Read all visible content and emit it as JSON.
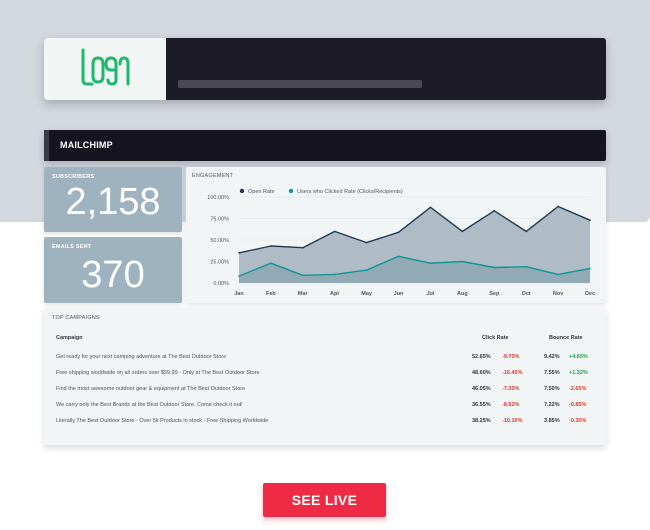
{
  "logo": {
    "text": "LOGO",
    "color": "#1fb86e"
  },
  "dashboard": {
    "title": "MAILCHIMP"
  },
  "stats": {
    "subscribers": {
      "label": "SUBSCRIBERS",
      "value": "2,158"
    },
    "emails_sent": {
      "label": "EMAILS SENT",
      "value": "370"
    }
  },
  "engagement": {
    "label": "ENGAGEMENT"
  },
  "chart_data": {
    "type": "area",
    "categories": [
      "Jan",
      "Feb",
      "Mar",
      "Apr",
      "May",
      "Jun",
      "Jul",
      "Aug",
      "Sep",
      "Oct",
      "Nov",
      "Dec"
    ],
    "series": [
      {
        "name": "Open Rate",
        "color": "#22394f",
        "values": [
          35,
          43,
          41,
          60,
          47,
          59,
          88,
          60,
          84,
          60,
          89,
          73
        ]
      },
      {
        "name": "Users who Clicked Rate (Clicks/Recipients)",
        "color": "#0f9597",
        "values": [
          8,
          23,
          9,
          10,
          15,
          31,
          23,
          25,
          18,
          19,
          10,
          17
        ]
      }
    ],
    "yticks": [
      "100.00%",
      "75.00%",
      "50.00%",
      "25.00%",
      "0.00%"
    ],
    "ylim": [
      0,
      100
    ],
    "legend_position": "top-left",
    "grid": true
  },
  "campaigns": {
    "label": "TOP CAMPAIGNS",
    "headers": {
      "campaign": "Campaign",
      "click_rate": "Click Rate",
      "bounce_rate": "Bounce Rate"
    },
    "rows": [
      {
        "name": "Get ready for your next camping adventure at The Best Outdoor Store",
        "click_rate": "52.65%",
        "click_delta": "-9.70%",
        "click_trend": "neg",
        "bounce_rate": "9.42%",
        "bounce_delta": "+4.65%",
        "bounce_trend": "pos"
      },
      {
        "name": "Free shipping worldwide on all orders over $99.99 - Only at The Best Outdoor Store",
        "click_rate": "48.60%",
        "click_delta": "-16.40%",
        "click_trend": "neg",
        "bounce_rate": "7.55%",
        "bounce_delta": "+1.32%",
        "bounce_trend": "pos"
      },
      {
        "name": "Find the most awesome outdoor gear & equipment at The Best Outdoor Store",
        "click_rate": "46.05%",
        "click_delta": "-7.30%",
        "click_trend": "neg",
        "bounce_rate": "7.50%",
        "bounce_delta": "-2.65%",
        "bounce_trend": "neg"
      },
      {
        "name": "We carry only the Best Brands at the Best Outdoor Store. Come check it out!",
        "click_rate": "36.55%",
        "click_delta": "-8.52%",
        "click_trend": "neg",
        "bounce_rate": "7.22%",
        "bounce_delta": "-0.85%",
        "bounce_trend": "neg"
      },
      {
        "name": "Literally The Best Outdoor Store - Over 5k Products in stock - Free Shipping Worldwide",
        "click_rate": "38.25%",
        "click_delta": "-10.10%",
        "click_trend": "neg",
        "bounce_rate": "3.85%",
        "bounce_delta": "-0.30%",
        "bounce_trend": "neg"
      }
    ]
  },
  "cta": {
    "label": "SEE LIVE",
    "color": "#ef2a45"
  }
}
